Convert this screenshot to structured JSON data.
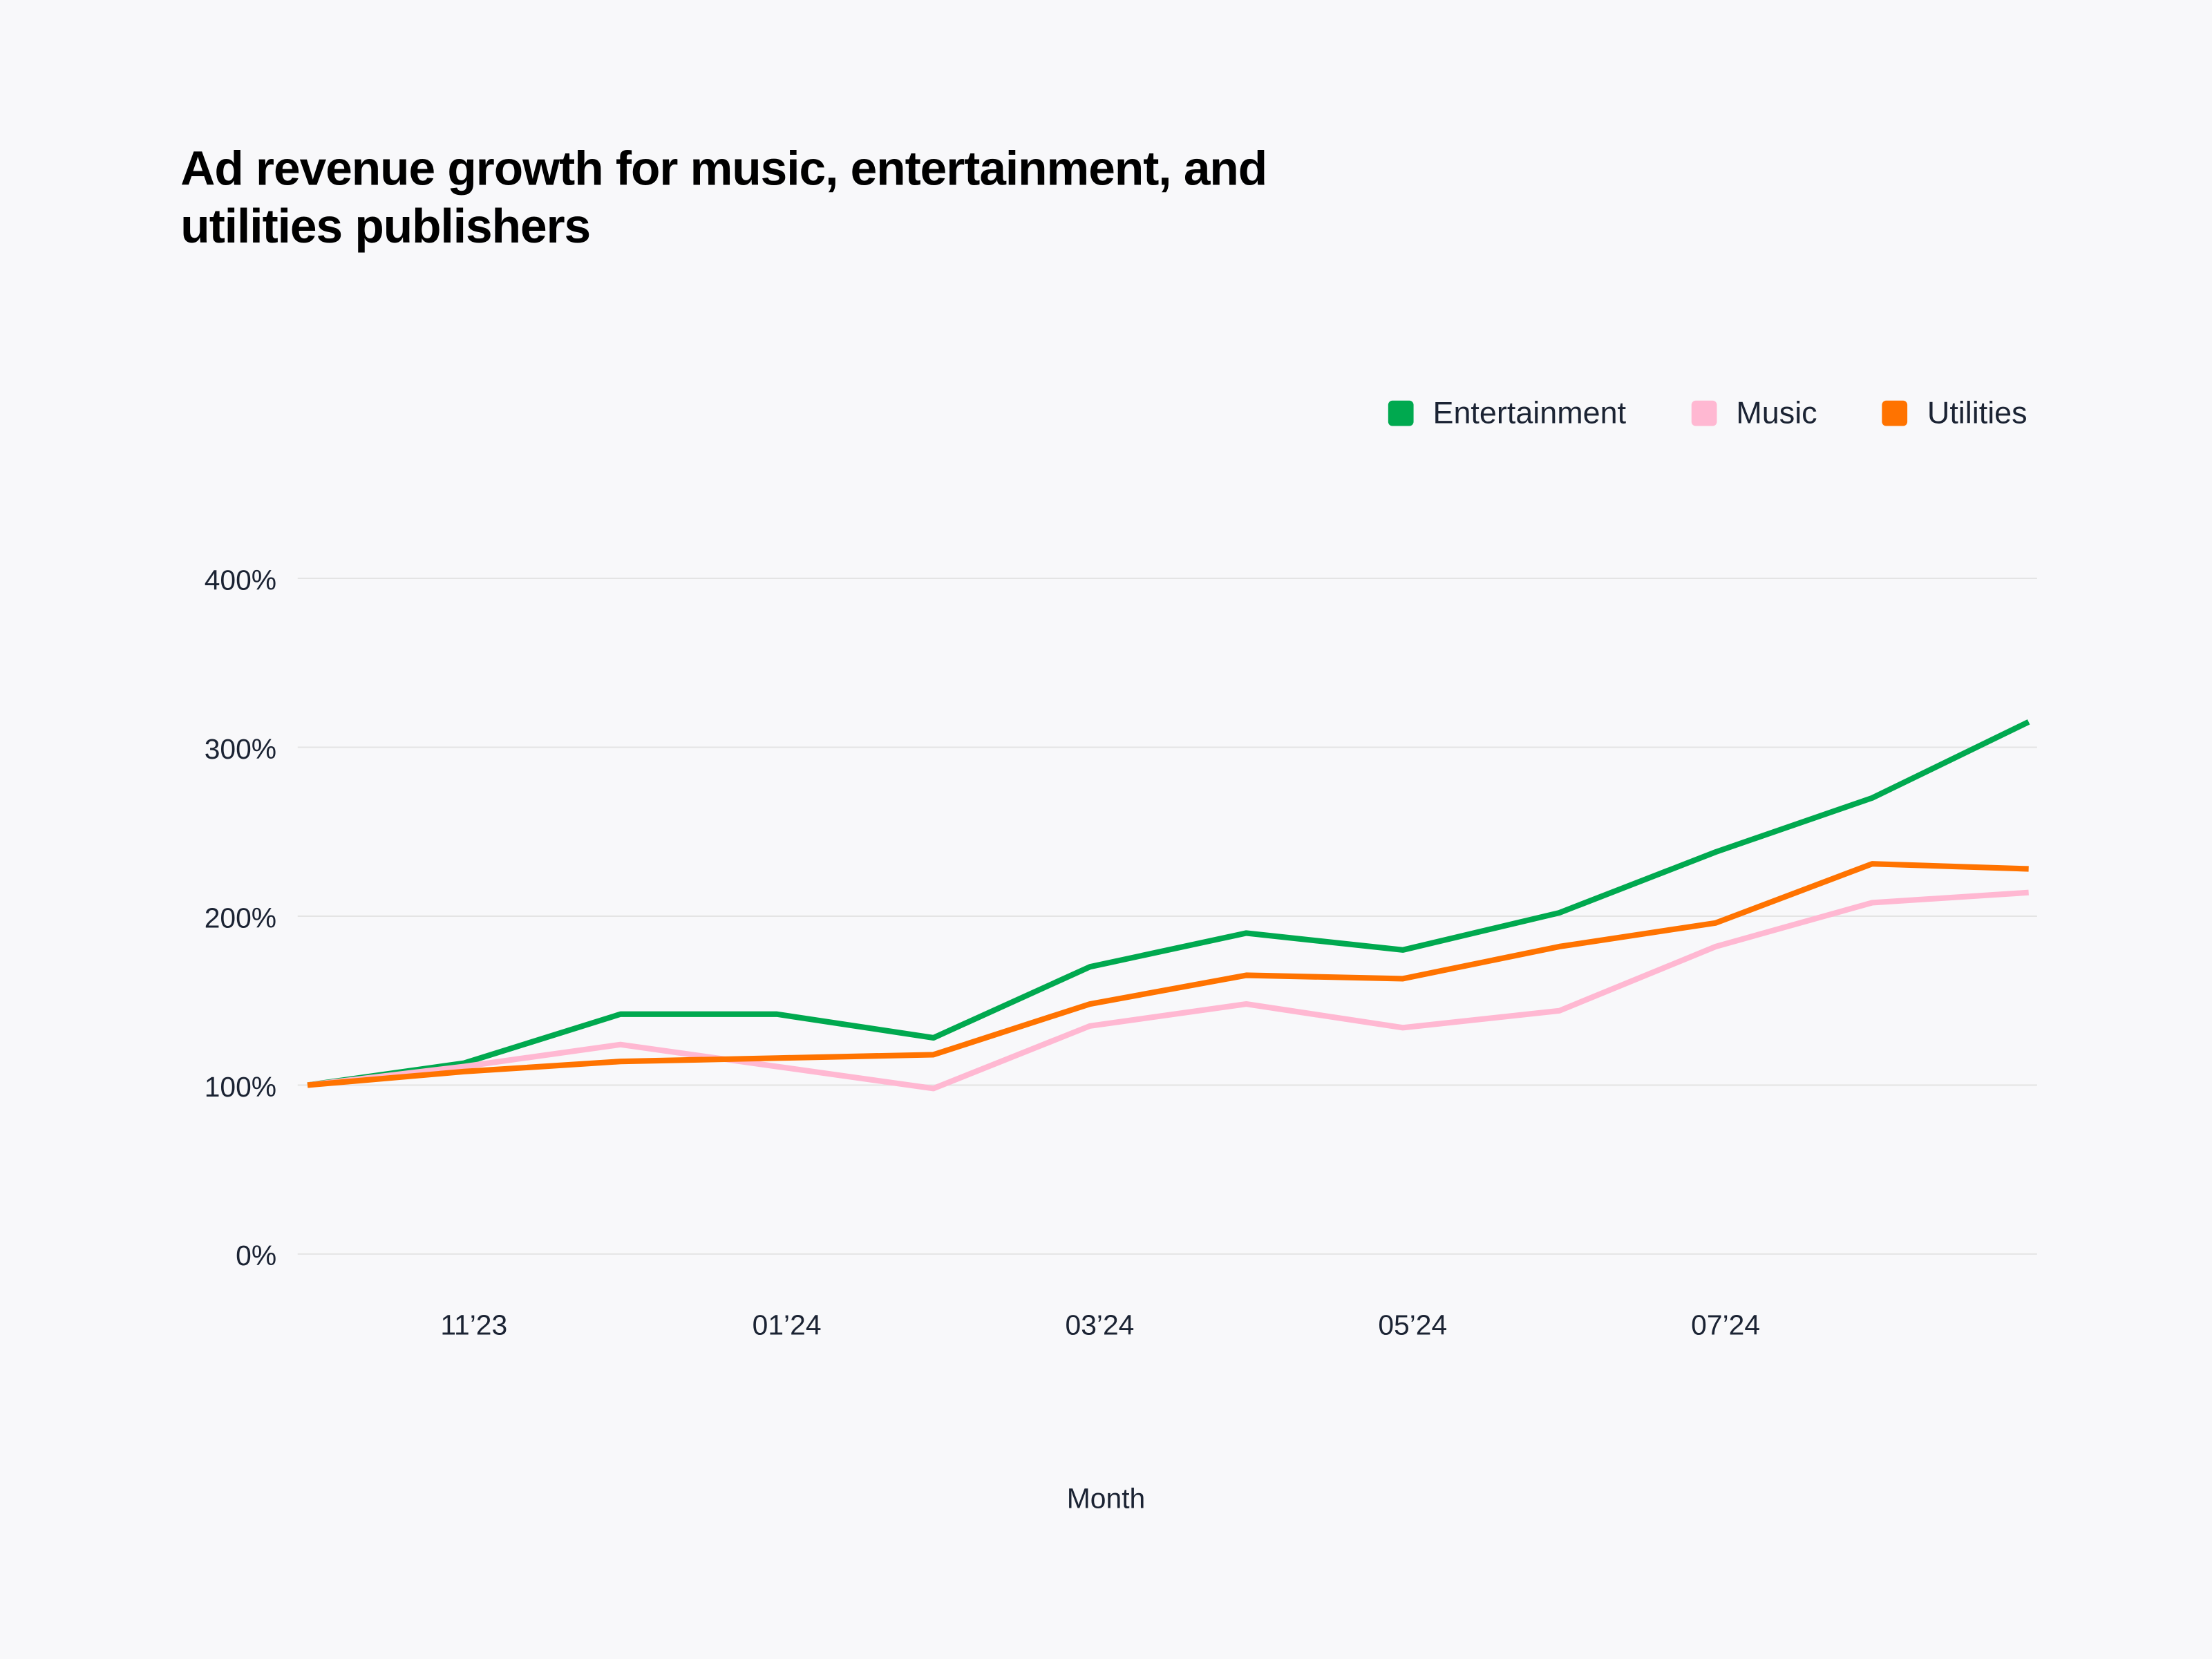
{
  "chart_data": {
    "type": "line",
    "title": "Ad revenue growth for music, entertainment, and utilities publishers",
    "xlabel": "Month",
    "ylabel": "",
    "x": [
      "2023-10",
      "2023-11",
      "2023-12",
      "2024-01",
      "2024-02",
      "2024-03",
      "2024-04",
      "2024-05",
      "2024-06",
      "2024-07",
      "2024-08",
      "2024-09"
    ],
    "x_tick_labels": [
      {
        "x": "2023-11",
        "label": "11’23"
      },
      {
        "x": "2024-01",
        "label": "01’24"
      },
      {
        "x": "2024-03",
        "label": "03’24"
      },
      {
        "x": "2024-05",
        "label": "05’24"
      },
      {
        "x": "2024-07",
        "label": "07’24"
      }
    ],
    "y_ticks": [
      0,
      100,
      200,
      300,
      400
    ],
    "y_tick_labels": [
      "0%",
      "100%",
      "200%",
      "300%",
      "400%"
    ],
    "ylim": [
      0,
      400
    ],
    "grid": "horizontal",
    "legend_position": "top-right",
    "series": [
      {
        "name": "Entertainment",
        "color": "#00a94f",
        "values": [
          100,
          113,
          142,
          142,
          128,
          170,
          190,
          180,
          202,
          238,
          270,
          315
        ]
      },
      {
        "name": "Music",
        "color": "#ffb8d2",
        "values": [
          100,
          111,
          124,
          111,
          98,
          135,
          148,
          134,
          144,
          182,
          208,
          214
        ]
      },
      {
        "name": "Utilities",
        "color": "#ff7300",
        "values": [
          100,
          108,
          114,
          116,
          118,
          148,
          165,
          163,
          182,
          196,
          231,
          228
        ]
      }
    ],
    "draw_order": [
      "Entertainment",
      "Music",
      "Utilities"
    ]
  }
}
